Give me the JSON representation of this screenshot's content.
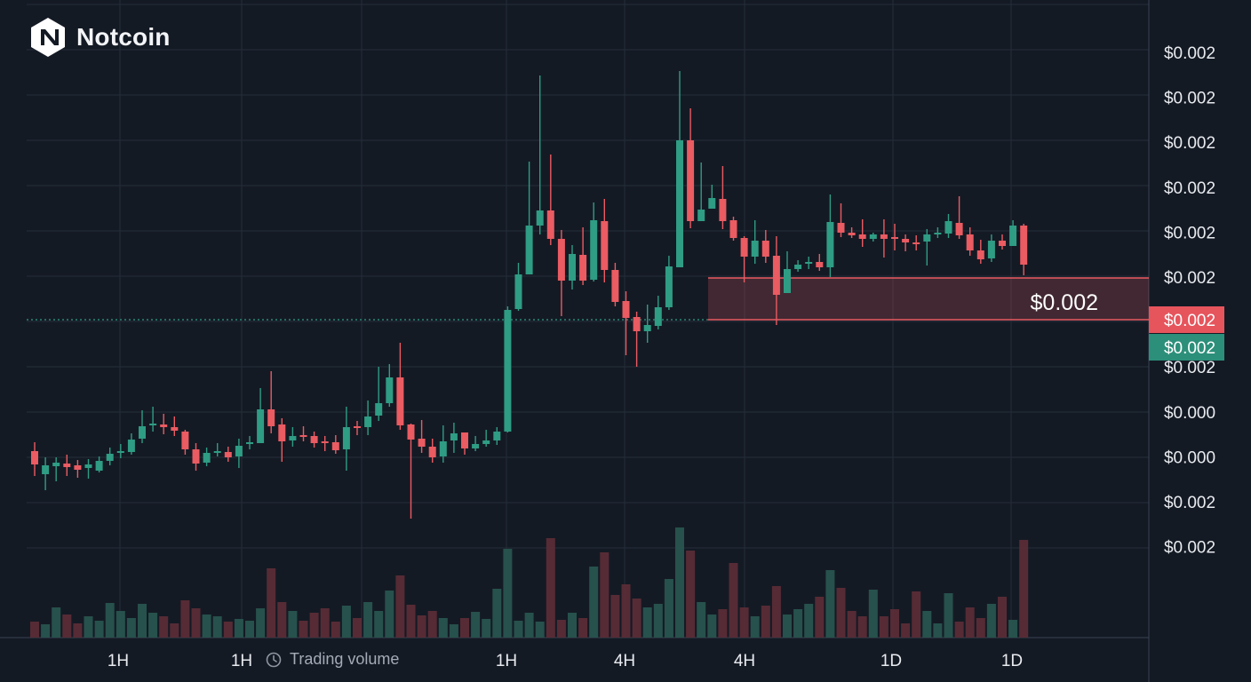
{
  "brand": {
    "name": "Notcoin",
    "icon": "notcoin-logo-icon"
  },
  "volume_legend": {
    "label": "Trading volume",
    "icon": "volume-clock-icon"
  },
  "colors": {
    "background": "#141a24",
    "up": "#2f9c84",
    "down": "#ea5b62",
    "grid": "#242d3a",
    "axis_text": "#e8ebef"
  },
  "chart_data": {
    "type": "candlestick",
    "title": "",
    "ylabel": "",
    "xlabel": "",
    "grid": true,
    "price_scale_labels": [
      "$0.002",
      "$0.002",
      "$0.002",
      "$0.002",
      "$0.002",
      "$0.002",
      "$0.002",
      "$0.002",
      "$0.000",
      "$0.000",
      "$0.002",
      "$0.002"
    ],
    "time_labels": [
      "1H",
      "1H",
      "1H",
      "4H",
      "4H",
      "1D",
      "1D"
    ],
    "zone_label": "$0.002",
    "price_tags": [
      {
        "label": "$0.002",
        "kind": "down"
      },
      {
        "label": "$0.002",
        "kind": "up"
      }
    ],
    "candles": [
      [
        508,
        523,
        536,
        498,
        18
      ],
      [
        534,
        524,
        552,
        515,
        15
      ],
      [
        525,
        521,
        542,
        515,
        34
      ],
      [
        522,
        526,
        536,
        512,
        26
      ],
      [
        524,
        529,
        538,
        518,
        16
      ],
      [
        527,
        523,
        539,
        517,
        24
      ],
      [
        530,
        519,
        532,
        514,
        19
      ],
      [
        519,
        511,
        524,
        504,
        39
      ],
      [
        510,
        508,
        516,
        500,
        30
      ],
      [
        509,
        495,
        512,
        488,
        22
      ],
      [
        494,
        480,
        499,
        462,
        38
      ],
      [
        479,
        477,
        486,
        458,
        28
      ],
      [
        478,
        481,
        489,
        466,
        24
      ],
      [
        481,
        485,
        491,
        469,
        16
      ],
      [
        486,
        506,
        512,
        484,
        42
      ],
      [
        506,
        522,
        530,
        499,
        33
      ],
      [
        521,
        510,
        525,
        504,
        26
      ],
      [
        510,
        508,
        514,
        499,
        24
      ],
      [
        509,
        515,
        520,
        503,
        18
      ],
      [
        514,
        502,
        527,
        494,
        21
      ],
      [
        500,
        498,
        506,
        491,
        19
      ],
      [
        499,
        461,
        468,
        437,
        33
      ],
      [
        461,
        480,
        488,
        418,
        78
      ],
      [
        478,
        497,
        520,
        471,
        40
      ],
      [
        496,
        491,
        503,
        481,
        30
      ],
      [
        490,
        491,
        497,
        480,
        19
      ],
      [
        491,
        499,
        504,
        486,
        28
      ],
      [
        497,
        498,
        508,
        491,
        33
      ],
      [
        498,
        507,
        511,
        490,
        18
      ],
      [
        506,
        481,
        530,
        458,
        36
      ],
      [
        480,
        482,
        490,
        474,
        22
      ],
      [
        481,
        469,
        490,
        451,
        40
      ],
      [
        468,
        454,
        474,
        413,
        30
      ],
      [
        454,
        425,
        458,
        410,
        53
      ],
      [
        425,
        479,
        484,
        386,
        70
      ],
      [
        478,
        495,
        584,
        477,
        37
      ],
      [
        494,
        503,
        510,
        473,
        25
      ],
      [
        503,
        515,
        521,
        494,
        30
      ],
      [
        514,
        497,
        521,
        479,
        22
      ],
      [
        496,
        488,
        510,
        476,
        15
      ],
      [
        487,
        505,
        512,
        487,
        22
      ],
      [
        505,
        500,
        508,
        491,
        29
      ],
      [
        500,
        496,
        503,
        484,
        21
      ],
      [
        496,
        486,
        501,
        481,
        55
      ],
      [
        486,
        349,
        487,
        345,
        100
      ],
      [
        348,
        309,
        350,
        296,
        19
      ],
      [
        309,
        254,
        266,
        182,
        28
      ],
      [
        254,
        237,
        264,
        85,
        18
      ],
      [
        237,
        269,
        276,
        174,
        112
      ],
      [
        269,
        316,
        356,
        259,
        20
      ],
      [
        316,
        286,
        326,
        276,
        28
      ],
      [
        287,
        316,
        321,
        256,
        22
      ],
      [
        315,
        248,
        317,
        228,
        80
      ],
      [
        249,
        304,
        318,
        224,
        96
      ],
      [
        304,
        340,
        345,
        296,
        48
      ],
      [
        339,
        358,
        400,
        328,
        60
      ],
      [
        357,
        373,
        413,
        351,
        44
      ],
      [
        373,
        366,
        386,
        343,
        34
      ],
      [
        367,
        346,
        371,
        333,
        38
      ],
      [
        346,
        300,
        349,
        288,
        66
      ],
      [
        301,
        158,
        301,
        80,
        124
      ],
      [
        158,
        249,
        257,
        122,
        98
      ],
      [
        249,
        236,
        248,
        183,
        40
      ],
      [
        235,
        223,
        226,
        208,
        26
      ],
      [
        224,
        249,
        258,
        187,
        32
      ],
      [
        248,
        268,
        271,
        244,
        84
      ],
      [
        268,
        289,
        318,
        266,
        34
      ],
      [
        289,
        271,
        297,
        248,
        24
      ],
      [
        271,
        289,
        296,
        259,
        36
      ],
      [
        288,
        332,
        366,
        266,
        58
      ],
      [
        330,
        303,
        309,
        283,
        26
      ],
      [
        303,
        298,
        306,
        293,
        32
      ],
      [
        297,
        295,
        303,
        289,
        38
      ],
      [
        295,
        301,
        305,
        286,
        46
      ],
      [
        301,
        250,
        312,
        219,
        76
      ],
      [
        251,
        262,
        267,
        229,
        56
      ],
      [
        262,
        265,
        268,
        256,
        30
      ],
      [
        264,
        269,
        278,
        247,
        24
      ],
      [
        269,
        264,
        272,
        262,
        54
      ],
      [
        264,
        269,
        290,
        247,
        24
      ],
      [
        267,
        268,
        282,
        252,
        32
      ],
      [
        269,
        273,
        283,
        264,
        16
      ],
      [
        273,
        274,
        282,
        265,
        52
      ],
      [
        272,
        264,
        299,
        258,
        30
      ],
      [
        264,
        262,
        268,
        256,
        16
      ],
      [
        263,
        249,
        268,
        241,
        50
      ],
      [
        251,
        265,
        269,
        221,
        18
      ],
      [
        264,
        282,
        288,
        256,
        34
      ],
      [
        282,
        292,
        297,
        270,
        22
      ],
      [
        291,
        271,
        295,
        264,
        38
      ],
      [
        271,
        277,
        281,
        264,
        46
      ],
      [
        277,
        254,
        262,
        248,
        20
      ],
      [
        254,
        298,
        310,
        252,
        110
      ]
    ]
  }
}
